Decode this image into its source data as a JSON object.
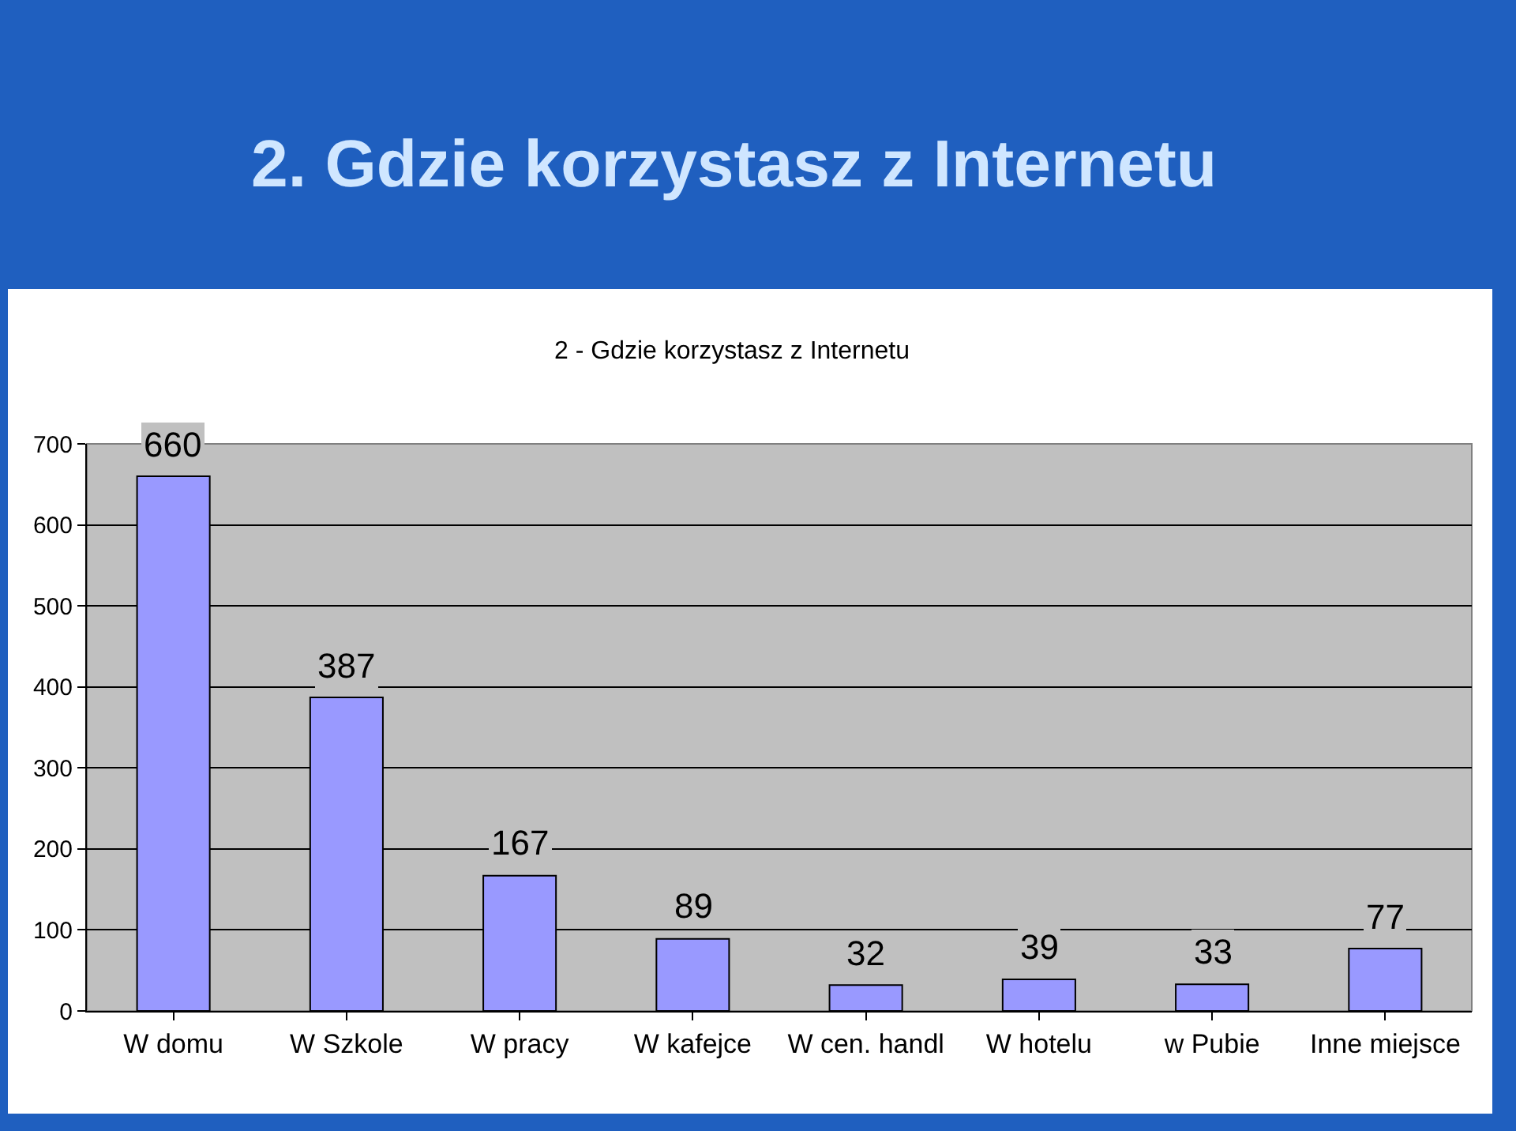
{
  "chart_data": {
    "type": "bar",
    "title": "2. Gdzie korzystasz z Internetu",
    "subtitle": "2 - Gdzie korzystasz z Internetu",
    "categories": [
      "W domu",
      "W Szkole",
      "W pracy",
      "W kafejce",
      "W cen. handl",
      "W hotelu",
      "w Pubie",
      "Inne miejsce"
    ],
    "values": [
      660,
      387,
      167,
      89,
      32,
      39,
      33,
      77
    ],
    "color": "#9999ff",
    "ylim": [
      0,
      700
    ],
    "yticks": [
      0,
      100,
      200,
      300,
      400,
      500,
      600,
      700
    ],
    "grid": "y",
    "data_labels": true
  }
}
